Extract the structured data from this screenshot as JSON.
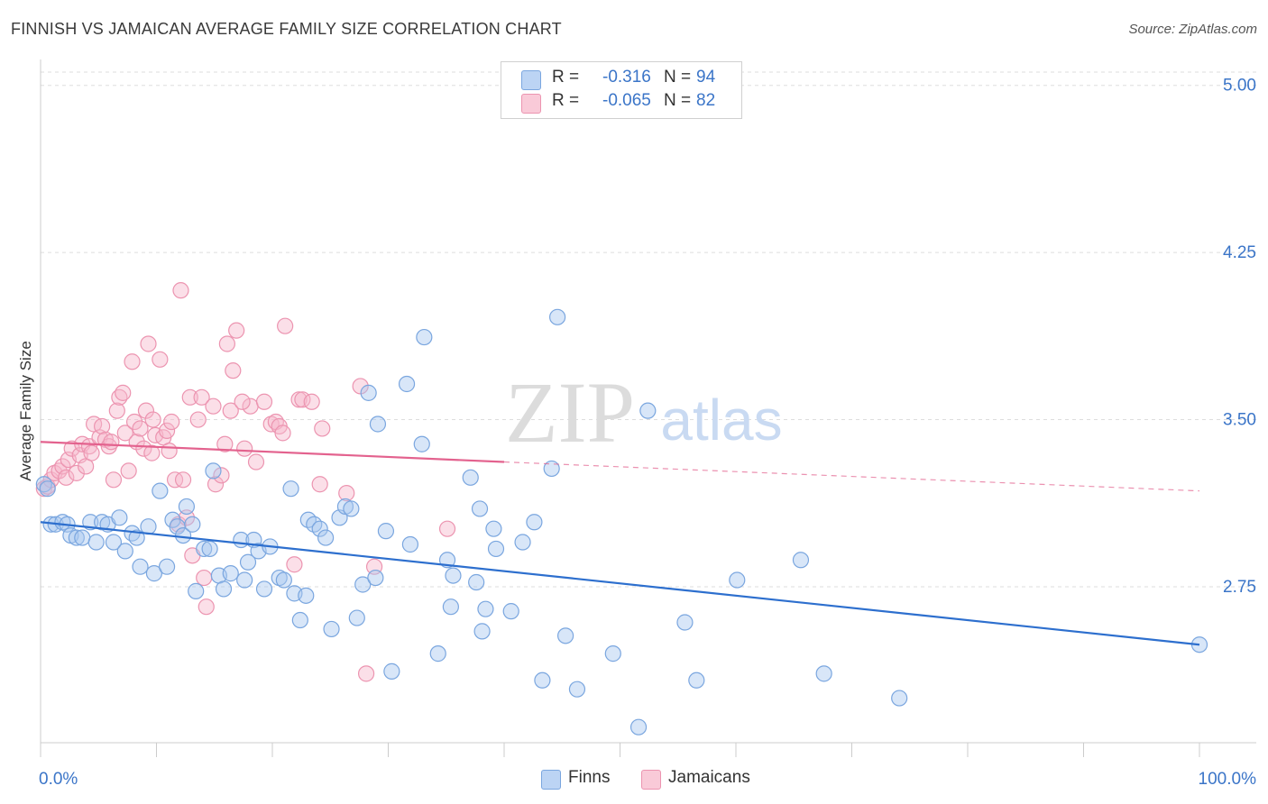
{
  "header": {
    "title": "FINNISH VS JAMAICAN AVERAGE FAMILY SIZE CORRELATION CHART",
    "source": "Source: ZipAtlas.com"
  },
  "watermark": {
    "zip": "ZIP",
    "atlas": "atlas"
  },
  "legend": {
    "finns": {
      "r_label": "R =",
      "r_value": "-0.316",
      "n_label": "N =",
      "n_value": "94"
    },
    "jamaicans": {
      "r_label": "R =",
      "r_value": "-0.065",
      "n_label": "N =",
      "n_value": "82"
    }
  },
  "colors": {
    "finns_fill": "#a9c8f0",
    "finns_stroke": "#7aa6df",
    "finns_line": "#2d6fce",
    "jamaicans_fill": "#f7b8cb",
    "jamaicans_stroke": "#ec94b0",
    "jamaicans_line": "#e3628e",
    "axis_text": "#3b75c8",
    "grid": "#dddddd"
  },
  "chart_data": {
    "type": "scatter",
    "title": "FINNISH VS JAMAICAN AVERAGE FAMILY SIZE CORRELATION CHART",
    "xlabel": "",
    "ylabel": "Average Family Size",
    "xlim": [
      0,
      100
    ],
    "ylim": [
      2.05,
      5.1
    ],
    "x_tick_labels": [
      "0.0%",
      "100.0%"
    ],
    "y_ticks": [
      2.75,
      3.5,
      4.25,
      5.0
    ],
    "y_tick_labels": [
      "2.75",
      "3.50",
      "4.25",
      "5.00"
    ],
    "legend_position": "bottom-center",
    "series": [
      {
        "name": "Finns",
        "r": -0.316,
        "n": 94,
        "trend": {
          "x0": 0,
          "y0": 3.04,
          "x1": 100,
          "y1": 2.49
        },
        "points": [
          [
            0.3,
            3.21
          ],
          [
            0.6,
            3.19
          ],
          [
            0.9,
            3.03
          ],
          [
            1.3,
            3.03
          ],
          [
            1.9,
            3.04
          ],
          [
            2.3,
            3.03
          ],
          [
            2.6,
            2.98
          ],
          [
            3.1,
            2.97
          ],
          [
            3.6,
            2.97
          ],
          [
            4.3,
            3.04
          ],
          [
            4.8,
            2.95
          ],
          [
            5.3,
            3.04
          ],
          [
            5.8,
            3.03
          ],
          [
            6.3,
            2.95
          ],
          [
            6.8,
            3.06
          ],
          [
            7.3,
            2.91
          ],
          [
            7.9,
            2.99
          ],
          [
            8.3,
            2.97
          ],
          [
            8.6,
            2.84
          ],
          [
            9.3,
            3.02
          ],
          [
            9.8,
            2.81
          ],
          [
            10.3,
            3.18
          ],
          [
            10.9,
            2.84
          ],
          [
            11.4,
            3.05
          ],
          [
            11.8,
            3.02
          ],
          [
            12.3,
            2.98
          ],
          [
            12.6,
            3.11
          ],
          [
            13.1,
            3.03
          ],
          [
            13.4,
            2.73
          ],
          [
            14.1,
            2.92
          ],
          [
            14.6,
            2.92
          ],
          [
            14.9,
            3.27
          ],
          [
            15.4,
            2.8
          ],
          [
            15.8,
            2.74
          ],
          [
            16.4,
            2.81
          ],
          [
            17.3,
            2.96
          ],
          [
            17.6,
            2.78
          ],
          [
            17.9,
            2.86
          ],
          [
            18.4,
            2.96
          ],
          [
            18.8,
            2.91
          ],
          [
            19.3,
            2.74
          ],
          [
            19.8,
            2.93
          ],
          [
            20.6,
            2.79
          ],
          [
            21.0,
            2.78
          ],
          [
            21.6,
            3.19
          ],
          [
            21.9,
            2.72
          ],
          [
            22.4,
            2.6
          ],
          [
            22.9,
            2.71
          ],
          [
            23.1,
            3.05
          ],
          [
            23.6,
            3.03
          ],
          [
            24.1,
            3.01
          ],
          [
            24.6,
            2.97
          ],
          [
            25.1,
            2.56
          ],
          [
            25.8,
            3.06
          ],
          [
            26.3,
            3.11
          ],
          [
            26.8,
            3.1
          ],
          [
            27.3,
            2.61
          ],
          [
            27.8,
            2.76
          ],
          [
            28.3,
            3.62
          ],
          [
            29.1,
            3.48
          ],
          [
            28.9,
            2.79
          ],
          [
            29.8,
            3.0
          ],
          [
            30.3,
            2.37
          ],
          [
            31.6,
            3.66
          ],
          [
            31.9,
            2.94
          ],
          [
            32.9,
            3.39
          ],
          [
            33.1,
            3.87
          ],
          [
            34.3,
            2.45
          ],
          [
            35.1,
            2.87
          ],
          [
            35.4,
            2.66
          ],
          [
            35.6,
            2.8
          ],
          [
            37.1,
            3.24
          ],
          [
            37.9,
            3.1
          ],
          [
            37.6,
            2.77
          ],
          [
            38.1,
            2.55
          ],
          [
            38.4,
            2.65
          ],
          [
            39.1,
            3.01
          ],
          [
            39.3,
            2.92
          ],
          [
            40.6,
            2.64
          ],
          [
            42.6,
            3.04
          ],
          [
            41.6,
            2.95
          ],
          [
            43.3,
            2.33
          ],
          [
            44.1,
            3.28
          ],
          [
            44.6,
            3.96
          ],
          [
            45.3,
            2.53
          ],
          [
            46.3,
            2.29
          ],
          [
            49.4,
            2.45
          ],
          [
            51.6,
            2.12
          ],
          [
            52.4,
            3.54
          ],
          [
            55.6,
            2.59
          ],
          [
            56.6,
            2.33
          ],
          [
            60.1,
            2.78
          ],
          [
            65.6,
            2.87
          ],
          [
            67.6,
            2.36
          ],
          [
            74.1,
            2.25
          ],
          [
            100.0,
            2.49
          ]
        ]
      },
      {
        "name": "Jamaicans",
        "r": -0.065,
        "n": 82,
        "trend": {
          "x0": 0,
          "y0": 3.4,
          "x1": 40,
          "y1": 3.31,
          "dashed_to_x": 100,
          "dashed_to_y": 3.18
        },
        "points": [
          [
            0.3,
            3.19
          ],
          [
            0.6,
            3.2
          ],
          [
            0.9,
            3.23
          ],
          [
            1.2,
            3.26
          ],
          [
            1.6,
            3.27
          ],
          [
            1.9,
            3.29
          ],
          [
            2.2,
            3.24
          ],
          [
            2.4,
            3.32
          ],
          [
            2.7,
            3.37
          ],
          [
            3.1,
            3.26
          ],
          [
            3.4,
            3.34
          ],
          [
            3.6,
            3.39
          ],
          [
            3.9,
            3.29
          ],
          [
            4.2,
            3.38
          ],
          [
            4.4,
            3.35
          ],
          [
            4.6,
            3.48
          ],
          [
            5.1,
            3.42
          ],
          [
            5.3,
            3.47
          ],
          [
            5.6,
            3.41
          ],
          [
            5.9,
            3.38
          ],
          [
            6.1,
            3.4
          ],
          [
            6.3,
            3.23
          ],
          [
            6.6,
            3.54
          ],
          [
            6.8,
            3.6
          ],
          [
            7.1,
            3.62
          ],
          [
            7.3,
            3.44
          ],
          [
            7.6,
            3.27
          ],
          [
            7.9,
            3.76
          ],
          [
            8.1,
            3.49
          ],
          [
            8.3,
            3.4
          ],
          [
            8.6,
            3.46
          ],
          [
            8.9,
            3.37
          ],
          [
            9.1,
            3.54
          ],
          [
            9.3,
            3.84
          ],
          [
            9.6,
            3.35
          ],
          [
            9.9,
            3.43
          ],
          [
            10.3,
            3.77
          ],
          [
            10.6,
            3.42
          ],
          [
            10.9,
            3.45
          ],
          [
            11.1,
            3.36
          ],
          [
            11.6,
            3.23
          ],
          [
            11.9,
            3.03
          ],
          [
            12.1,
            4.08
          ],
          [
            12.3,
            3.23
          ],
          [
            12.6,
            3.06
          ],
          [
            12.9,
            3.6
          ],
          [
            13.1,
            2.89
          ],
          [
            13.6,
            3.5
          ],
          [
            13.9,
            3.6
          ],
          [
            14.1,
            2.79
          ],
          [
            14.3,
            2.66
          ],
          [
            14.9,
            3.56
          ],
          [
            15.1,
            3.21
          ],
          [
            15.6,
            3.25
          ],
          [
            16.1,
            3.84
          ],
          [
            16.6,
            3.72
          ],
          [
            16.9,
            3.9
          ],
          [
            17.6,
            3.37
          ],
          [
            18.1,
            3.56
          ],
          [
            18.6,
            3.31
          ],
          [
            19.3,
            3.58
          ],
          [
            19.9,
            3.48
          ],
          [
            20.3,
            3.49
          ],
          [
            20.6,
            3.47
          ],
          [
            21.1,
            3.92
          ],
          [
            21.9,
            2.85
          ],
          [
            22.3,
            3.59
          ],
          [
            22.6,
            3.59
          ],
          [
            23.4,
            3.58
          ],
          [
            24.1,
            3.21
          ],
          [
            24.3,
            3.46
          ],
          [
            26.4,
            3.17
          ],
          [
            27.6,
            3.65
          ],
          [
            28.1,
            2.36
          ],
          [
            28.8,
            2.84
          ],
          [
            35.1,
            3.01
          ],
          [
            16.4,
            3.54
          ],
          [
            17.4,
            3.58
          ],
          [
            9.7,
            3.5
          ],
          [
            11.3,
            3.49
          ],
          [
            15.9,
            3.39
          ],
          [
            20.9,
            3.44
          ]
        ]
      }
    ]
  }
}
